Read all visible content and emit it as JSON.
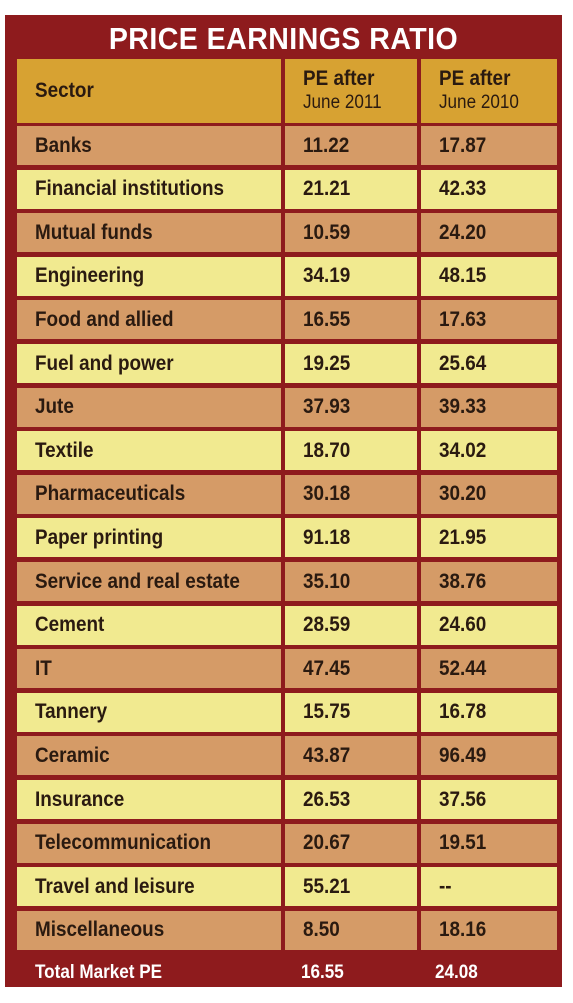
{
  "title": "PRICE EARNINGS RATIO",
  "header": {
    "sector": "Sector",
    "col2_line1": "PE after",
    "col2_line2": "June 2011",
    "col3_line1": "PE after",
    "col3_line2": "June 2010"
  },
  "rows": [
    {
      "sector": "Banks",
      "pe2011": "11.22",
      "pe2010": "17.87"
    },
    {
      "sector": "Financial institutions",
      "pe2011": "21.21",
      "pe2010": "42.33"
    },
    {
      "sector": "Mutual funds",
      "pe2011": "10.59",
      "pe2010": "24.20"
    },
    {
      "sector": "Engineering",
      "pe2011": "34.19",
      "pe2010": "48.15"
    },
    {
      "sector": "Food and allied",
      "pe2011": "16.55",
      "pe2010": "17.63"
    },
    {
      "sector": "Fuel and power",
      "pe2011": "19.25",
      "pe2010": "25.64"
    },
    {
      "sector": "Jute",
      "pe2011": "37.93",
      "pe2010": "39.33"
    },
    {
      "sector": "Textile",
      "pe2011": "18.70",
      "pe2010": "34.02"
    },
    {
      "sector": "Pharmaceuticals",
      "pe2011": "30.18",
      "pe2010": "30.20"
    },
    {
      "sector": "Paper printing",
      "pe2011": "91.18",
      "pe2010": "21.95"
    },
    {
      "sector": "Service and real estate",
      "pe2011": "35.10",
      "pe2010": "38.76"
    },
    {
      "sector": "Cement",
      "pe2011": "28.59",
      "pe2010": "24.60"
    },
    {
      "sector": "IT",
      "pe2011": "47.45",
      "pe2010": "52.44"
    },
    {
      "sector": "Tannery",
      "pe2011": "15.75",
      "pe2010": "16.78"
    },
    {
      "sector": "Ceramic",
      "pe2011": "43.87",
      "pe2010": "96.49"
    },
    {
      "sector": "Insurance",
      "pe2011": "26.53",
      "pe2010": "37.56"
    },
    {
      "sector": "Telecommunication",
      "pe2011": "20.67",
      "pe2010": "19.51"
    },
    {
      "sector": "Travel and leisure",
      "pe2011": "55.21",
      "pe2010": "--"
    },
    {
      "sector": "Miscellaneous",
      "pe2011": "8.50",
      "pe2010": "18.16"
    }
  ],
  "total": {
    "label": "Total Market PE",
    "pe2011": "16.55",
    "pe2010": "24.08"
  },
  "colors": {
    "frame": "#8e1b1d",
    "header": "#d7a232",
    "row_odd": "#d59b67",
    "row_even": "#f1ea90"
  }
}
